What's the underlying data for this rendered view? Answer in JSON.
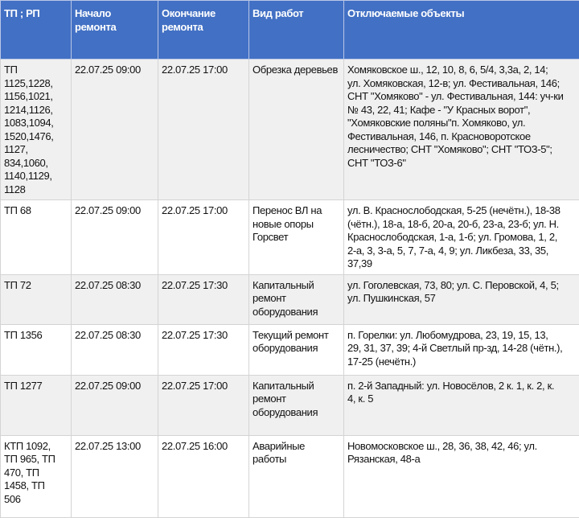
{
  "colors": {
    "header_bg": "#4270c4",
    "header_text": "#ffffff",
    "row_alt": "#f0f0f0"
  },
  "headers": [
    "ТП ; РП",
    "Начало\nремонта",
    "Окончание\nремонта",
    "Вид работ",
    "Отключаемые объекты"
  ],
  "rows": [
    {
      "tp": "ТП\n1125,1228,\n1156,1021,\n1214,1126,\n1083,1094,\n1520,1476,\n1127,\n834,1060,\n1140,1129,\n1128",
      "start": "22.07.25 09:00",
      "end": "22.07.25 17:00",
      "work": "Обрезка деревьев",
      "objects": "Хомяковское ш., 12, 10, 8, 6, 5/4, 3,3а, 2, 14;\nул. Хомяковская, 12-в; ул. Фестивальная, 146;\nСНТ \"Хомяково\" - ул. Фестивальная, 144: уч-ки\n№ 43, 22, 41; Кафе - \"У Красных ворот\",\n\"Хомяковские поляны\"п. Хомяково, ул.\nФестивальная, 146,  п. Красноворотское\nлесничество; СНТ \"Хомяково\"; СНТ \"ТОЗ-5\";\nСНТ \"ТОЗ-6\""
    },
    {
      "tp": "ТП 68",
      "start": "22.07.25 09:00",
      "end": "22.07.25 17:00",
      "work": "Перенос ВЛ на\nновые опоры\nГорсвет",
      "objects": "ул. В. Краснослободская, 5-25 (нечётн.), 18-38\n(чётн.), 18-а, 18-б, 20-а, 20-б, 23-а, 23-б; ул. Н.\nКраснослободская, 1-а, 1-б; ул. Громова, 1, 2,\n2-а, 3, 3-а, 5, 7, 7-а, 4, 9; ул. Ликбеза, 33, 35,\n37,39"
    },
    {
      "tp": "ТП 72",
      "start": "22.07.25 08:30",
      "end": "22.07.25 17:30",
      "work": "Капитальный\nремонт\nоборудования",
      "objects": "ул. Гоголевская, 73, 80; ул. С. Перовской, 4, 5;\nул. Пушкинская, 57"
    },
    {
      "tp": "ТП 1356",
      "start": "22.07.25 08:30",
      "end": "22.07.25 17:30",
      "work": "Текущий ремонт\nоборудования",
      "objects": "п. Горелки: ул. Любомудрова, 23, 19, 15, 13,\n29, 31, 37, 39; 4-й Светлый пр-зд, 14-28 (чётн.),\n17-25 (нечётн.)"
    },
    {
      "tp": "ТП 1277",
      "start": "22.07.25 09:00",
      "end": "22.07.25 17:00",
      "work": "Капитальный\nремонт\nоборудования",
      "objects": "п. 2-й Западный: ул. Новосёлов, 2 к. 1, к. 2, к.\n4, к. 5"
    },
    {
      "tp": "КТП 1092,\nТП 965,    ТП\n470,    ТП\n1458,  ТП\n506",
      "start": "22.07.25 13:00",
      "end": "22.07.25 16:00",
      "work": "Аварийные\nработы",
      "objects": "Новомосковское ш., 28, 36, 38, 42, 46; ул.\nРязанская, 48-а"
    }
  ]
}
